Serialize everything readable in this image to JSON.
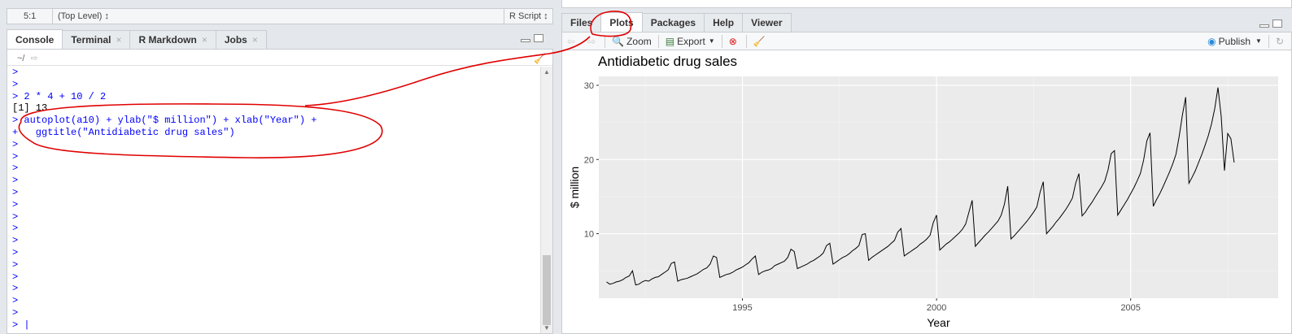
{
  "editor_status": {
    "position": "5:1",
    "scope": "(Top Level) ↕",
    "file_type": "R Script ↕"
  },
  "left_tabs": [
    {
      "label": "Console",
      "closable": false
    },
    {
      "label": "Terminal",
      "closable": true
    },
    {
      "label": "R Markdown",
      "closable": true
    },
    {
      "label": "Jobs",
      "closable": true
    }
  ],
  "console": {
    "path": "~/",
    "lines": [
      {
        "text": ">",
        "kind": "cmd"
      },
      {
        "text": ">",
        "kind": "cmd"
      },
      {
        "text": "> 2 * 4 + 10 / 2",
        "kind": "cmd"
      },
      {
        "text": "[1] 13",
        "kind": "out"
      },
      {
        "text": "> autoplot(a10) + ylab(\"$ million\") + xlab(\"Year\") +",
        "kind": "cmd"
      },
      {
        "text": "+   ggtitle(\"Antidiabetic drug sales\")",
        "kind": "cmd"
      },
      {
        "text": ">",
        "kind": "cmd"
      },
      {
        "text": ">",
        "kind": "cmd"
      },
      {
        "text": ">",
        "kind": "cmd"
      },
      {
        "text": ">",
        "kind": "cmd"
      },
      {
        "text": ">",
        "kind": "cmd"
      },
      {
        "text": ">",
        "kind": "cmd"
      },
      {
        "text": ">",
        "kind": "cmd"
      },
      {
        "text": ">",
        "kind": "cmd"
      },
      {
        "text": ">",
        "kind": "cmd"
      },
      {
        "text": ">",
        "kind": "cmd"
      },
      {
        "text": ">",
        "kind": "cmd"
      },
      {
        "text": ">",
        "kind": "cmd"
      },
      {
        "text": ">",
        "kind": "cmd"
      },
      {
        "text": ">",
        "kind": "cmd"
      },
      {
        "text": ">",
        "kind": "cmd"
      },
      {
        "text": "> |",
        "kind": "cmd"
      }
    ]
  },
  "right_tabs": [
    {
      "label": "Files",
      "active": false
    },
    {
      "label": "Plots",
      "active": true
    },
    {
      "label": "Packages",
      "active": false
    },
    {
      "label": "Help",
      "active": false
    },
    {
      "label": "Viewer",
      "active": false
    }
  ],
  "plot_toolbar": {
    "zoom_label": "Zoom",
    "export_label": "Export",
    "publish_label": "Publish"
  },
  "colors": {
    "command_text": "#0000ff",
    "annotation_red": "#e00000",
    "panel_bg": "#ebebeb"
  },
  "chart_data": {
    "type": "line",
    "title": "Antidiabetic drug sales",
    "xlabel": "Year",
    "ylabel": "$ million",
    "xlim": [
      1991.3,
      2008.8
    ],
    "ylim": [
      1.3,
      31.2
    ],
    "x_ticks": [
      1995,
      2000,
      2005
    ],
    "y_ticks": [
      10,
      20,
      30
    ],
    "grid": true,
    "series": [
      {
        "start": 1991.5,
        "frequency": 12,
        "values": [
          3.5,
          3.2,
          3.3,
          3.5,
          3.6,
          3.8,
          4.1,
          4.3,
          5.0,
          3.1,
          3.2,
          3.5,
          3.7,
          3.6,
          3.9,
          4.1,
          4.2,
          4.5,
          4.8,
          5.1,
          6.0,
          6.2,
          3.6,
          3.8,
          3.9,
          4.0,
          4.2,
          4.4,
          4.6,
          4.9,
          5.2,
          5.4,
          5.9,
          7.0,
          6.8,
          4.1,
          4.3,
          4.5,
          4.6,
          4.8,
          5.1,
          5.3,
          5.5,
          5.8,
          6.1,
          6.6,
          7.0,
          4.5,
          4.8,
          5.0,
          5.1,
          5.3,
          5.7,
          5.9,
          6.1,
          6.3,
          6.8,
          7.9,
          7.6,
          5.3,
          5.5,
          5.7,
          5.9,
          6.2,
          6.4,
          6.7,
          7.0,
          7.4,
          8.4,
          8.7,
          5.9,
          6.2,
          6.5,
          6.8,
          7.0,
          7.3,
          7.7,
          8.0,
          8.4,
          9.9,
          10.0,
          6.4,
          6.8,
          7.1,
          7.4,
          7.7,
          8.0,
          8.3,
          8.7,
          9.1,
          10.2,
          10.7,
          7.0,
          7.3,
          7.6,
          7.9,
          8.2,
          8.6,
          8.9,
          9.3,
          9.8,
          11.5,
          12.5,
          7.8,
          8.2,
          8.6,
          8.9,
          9.3,
          9.7,
          10.1,
          10.6,
          11.3,
          12.9,
          14.5,
          8.3,
          8.8,
          9.3,
          9.8,
          10.2,
          10.7,
          11.2,
          11.7,
          12.5,
          14.0,
          16.4,
          9.3,
          9.7,
          10.2,
          10.7,
          11.2,
          11.7,
          12.3,
          12.9,
          13.6,
          15.6,
          17.0,
          10.0,
          10.5,
          11.0,
          11.6,
          12.1,
          12.7,
          13.3,
          14.0,
          14.8,
          16.8,
          18.1,
          12.4,
          12.9,
          13.6,
          14.2,
          14.9,
          15.6,
          16.3,
          17.1,
          18.6,
          20.8,
          21.2,
          12.5,
          13.2,
          13.9,
          14.6,
          15.4,
          16.2,
          17.1,
          18.1,
          19.9,
          22.5,
          23.6,
          13.7,
          14.6,
          15.4,
          16.3,
          17.3,
          18.3,
          19.4,
          20.7,
          23.1,
          26.0,
          28.4,
          16.8,
          17.6,
          18.5,
          19.6,
          20.7,
          21.9,
          23.2,
          24.8,
          26.9,
          29.7,
          25.8,
          18.5,
          23.5,
          22.8,
          19.6
        ],
        "color": "#000000"
      }
    ]
  }
}
